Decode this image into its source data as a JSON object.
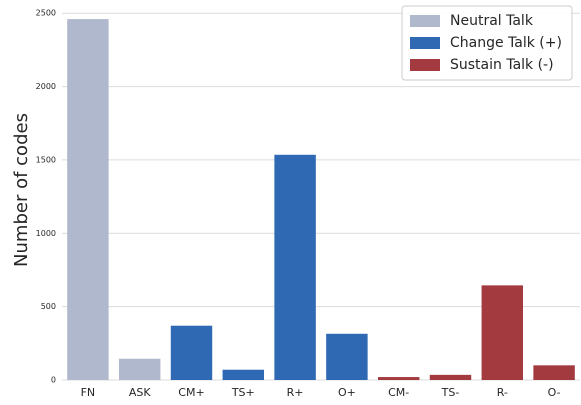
{
  "chart_data": {
    "type": "bar",
    "y_label": "Number of codes",
    "categories": [
      "FN",
      "ASK",
      "CM+",
      "TS+",
      "R+",
      "O+",
      "CM-",
      "TS-",
      "R-",
      "O-"
    ],
    "series": [
      {
        "name": "Neutral Talk",
        "color": "#b0b8cd",
        "values": [
          2460,
          145,
          null,
          null,
          null,
          null,
          null,
          null,
          null,
          null
        ]
      },
      {
        "name": "Change Talk (+)",
        "color": "#2f69b3",
        "values": [
          null,
          null,
          370,
          70,
          1535,
          315,
          null,
          null,
          null,
          null
        ]
      },
      {
        "name": "Sustain Talk (-)",
        "color": "#a23a3f",
        "values": [
          null,
          null,
          null,
          null,
          null,
          null,
          20,
          35,
          645,
          100
        ]
      }
    ],
    "ylim": [
      0,
      2590
    ],
    "yticks": [
      0,
      500,
      1000,
      1500,
      2000,
      2500
    ],
    "grid": true,
    "legend": "upper right"
  }
}
